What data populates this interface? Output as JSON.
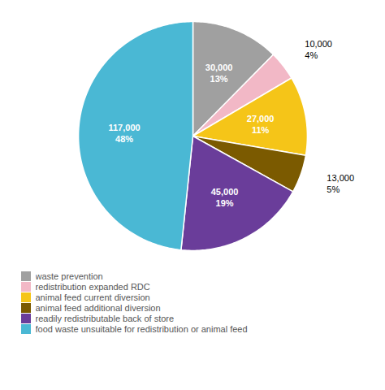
{
  "chart_data": {
    "type": "pie",
    "categories": [
      "waste prevention",
      "redistribution expanded RDC",
      "animal feed current diversion",
      "animal feed additional diversion",
      "readily redistributable back of store",
      "food waste unsuitable for redistribution or animal feed"
    ],
    "values": [
      30000,
      10000,
      27000,
      13000,
      45000,
      117000
    ],
    "value_labels": [
      "30,000\n13%",
      "10,000\n4%",
      "27,000\n11%",
      "13,000\n5%",
      "45,000\n19%",
      "117,000\n48%"
    ],
    "colors": [
      "#a0a0a0",
      "#f2b8c6",
      "#f5c518",
      "#7b5a00",
      "#6a3d9a",
      "#4ab8d4"
    ],
    "data_labels": true,
    "legend": "bottom"
  }
}
